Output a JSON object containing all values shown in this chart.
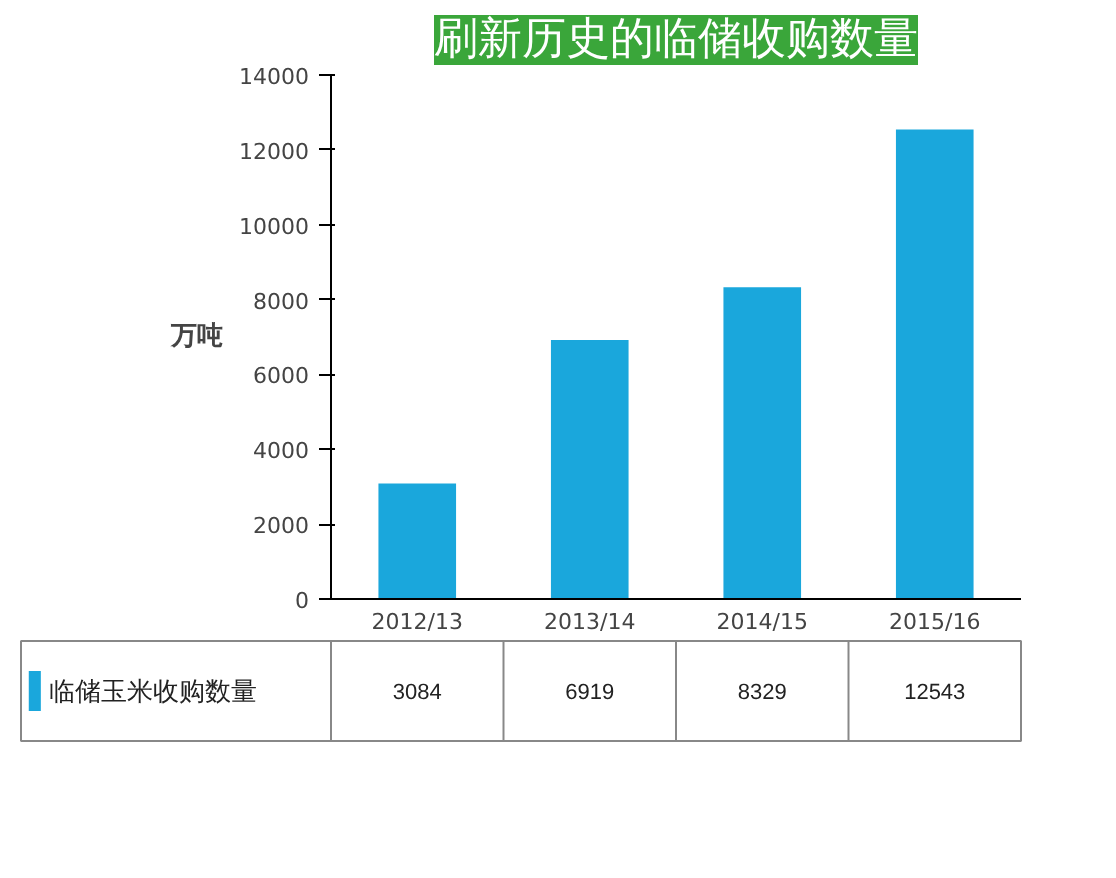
{
  "chart_data": {
    "type": "bar",
    "title": "刷新历史的临储收购数量",
    "ylabel": "万吨",
    "categories": [
      "2012/13",
      "2013/14",
      "2014/15",
      "2015/16"
    ],
    "series": [
      {
        "name": "临储玉米收购数量",
        "color": "#1aa7dc",
        "values": [
          3084,
          6919,
          8329,
          12543
        ]
      }
    ],
    "ylim": [
      0,
      14000
    ],
    "yticks": [
      0,
      2000,
      4000,
      6000,
      8000,
      10000,
      12000,
      14000
    ],
    "data_labels": true,
    "grid": false,
    "legend": "bottom"
  }
}
